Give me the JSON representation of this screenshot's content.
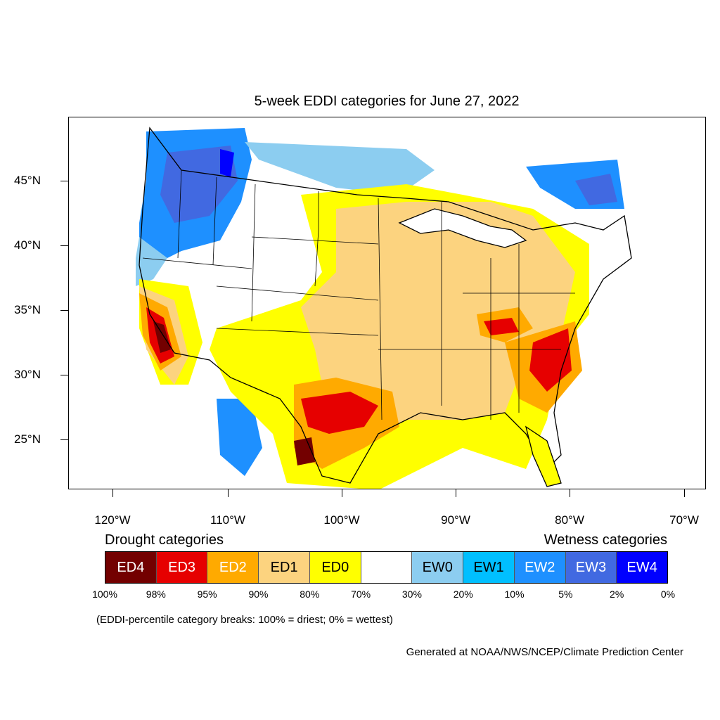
{
  "title": "5-week EDDI categories for June 27, 2022",
  "y_axis_labels": [
    "45°N",
    "40°N",
    "35°N",
    "30°N",
    "25°N"
  ],
  "x_axis_labels": [
    "120°W",
    "110°W",
    "100°W",
    "90°W",
    "80°W",
    "70°W"
  ],
  "legend": {
    "drought_title": "Drought categories",
    "wetness_title": "Wetness categories",
    "categories": [
      {
        "label": "ED4",
        "color": "#730000",
        "text_color": "#ffffff"
      },
      {
        "label": "ED3",
        "color": "#e60000",
        "text_color": "#ffffff"
      },
      {
        "label": "ED2",
        "color": "#ffaa00",
        "text_color": "#ffffff"
      },
      {
        "label": "ED1",
        "color": "#fcd37f",
        "text_color": "#000000"
      },
      {
        "label": "ED0",
        "color": "#ffff00",
        "text_color": "#000000"
      },
      {
        "label": "",
        "color": "#ffffff",
        "text_color": "#000000"
      },
      {
        "label": "EW0",
        "color": "#8ccdf0",
        "text_color": "#000000"
      },
      {
        "label": "EW1",
        "color": "#00bfff",
        "text_color": "#000000"
      },
      {
        "label": "EW2",
        "color": "#1e90ff",
        "text_color": "#ffffff"
      },
      {
        "label": "EW3",
        "color": "#4169e1",
        "text_color": "#ffffff"
      },
      {
        "label": "EW4",
        "color": "#0000ff",
        "text_color": "#ffffff"
      }
    ],
    "percentiles": [
      "100%",
      "98%",
      "95%",
      "90%",
      "80%",
      "70%",
      "30%",
      "20%",
      "10%",
      "5%",
      "2%",
      "0%"
    ]
  },
  "note": "(EDDI-percentile category breaks: 100% = driest; 0% = wettest)",
  "credit": "Generated at NOAA/NWS/NCEP/Climate Prediction Center"
}
